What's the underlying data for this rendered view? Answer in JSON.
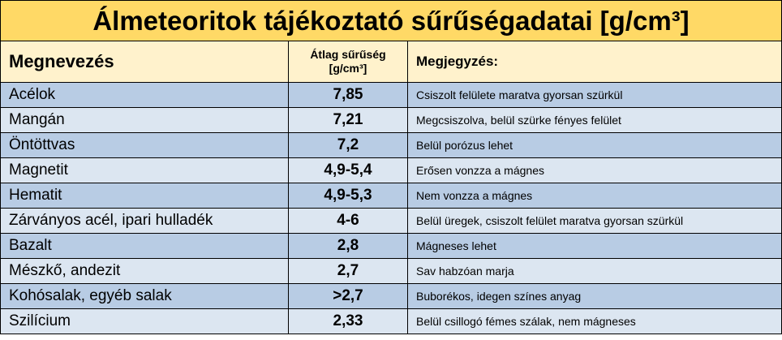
{
  "title": "Álmeteoritok tájékoztató sűrűségadatai [g/cm³]",
  "table": {
    "header": [
      "Megnevezés",
      "Átlag sűrűség [g/cm³]",
      "Megjegyzés:"
    ],
    "rows": [
      [
        "Acélok",
        "7,85",
        "Csiszolt felülete maratva gyorsan szürkül"
      ],
      [
        "Mangán",
        "7,21",
        "Megcsiszolva, belül szürke fényes felület"
      ],
      [
        "Öntöttvas",
        "7,2",
        "Belül porózus lehet"
      ],
      [
        "Magnetit",
        "4,9-5,4",
        "Erősen vonzza a mágnes"
      ],
      [
        "Hematit",
        "4,9-5,3",
        "Nem vonzza a mágnes"
      ],
      [
        "Zárványos acél, ipari hulladék",
        "4-6",
        "Belül üregek, csiszolt felület maratva gyorsan szürkül"
      ],
      [
        "Bazalt",
        "2,8",
        "Mágneses lehet"
      ],
      [
        "Mészkő, andezit",
        "2,7",
        "Sav habzóan marja"
      ],
      [
        "Kohósalak, egyéb salak",
        ">2,7",
        "Buborékos, idegen színes anyag"
      ],
      [
        "Szilícium",
        "2,33",
        "Belül csillogó fémes szálak, nem mágneses"
      ]
    ]
  }
}
